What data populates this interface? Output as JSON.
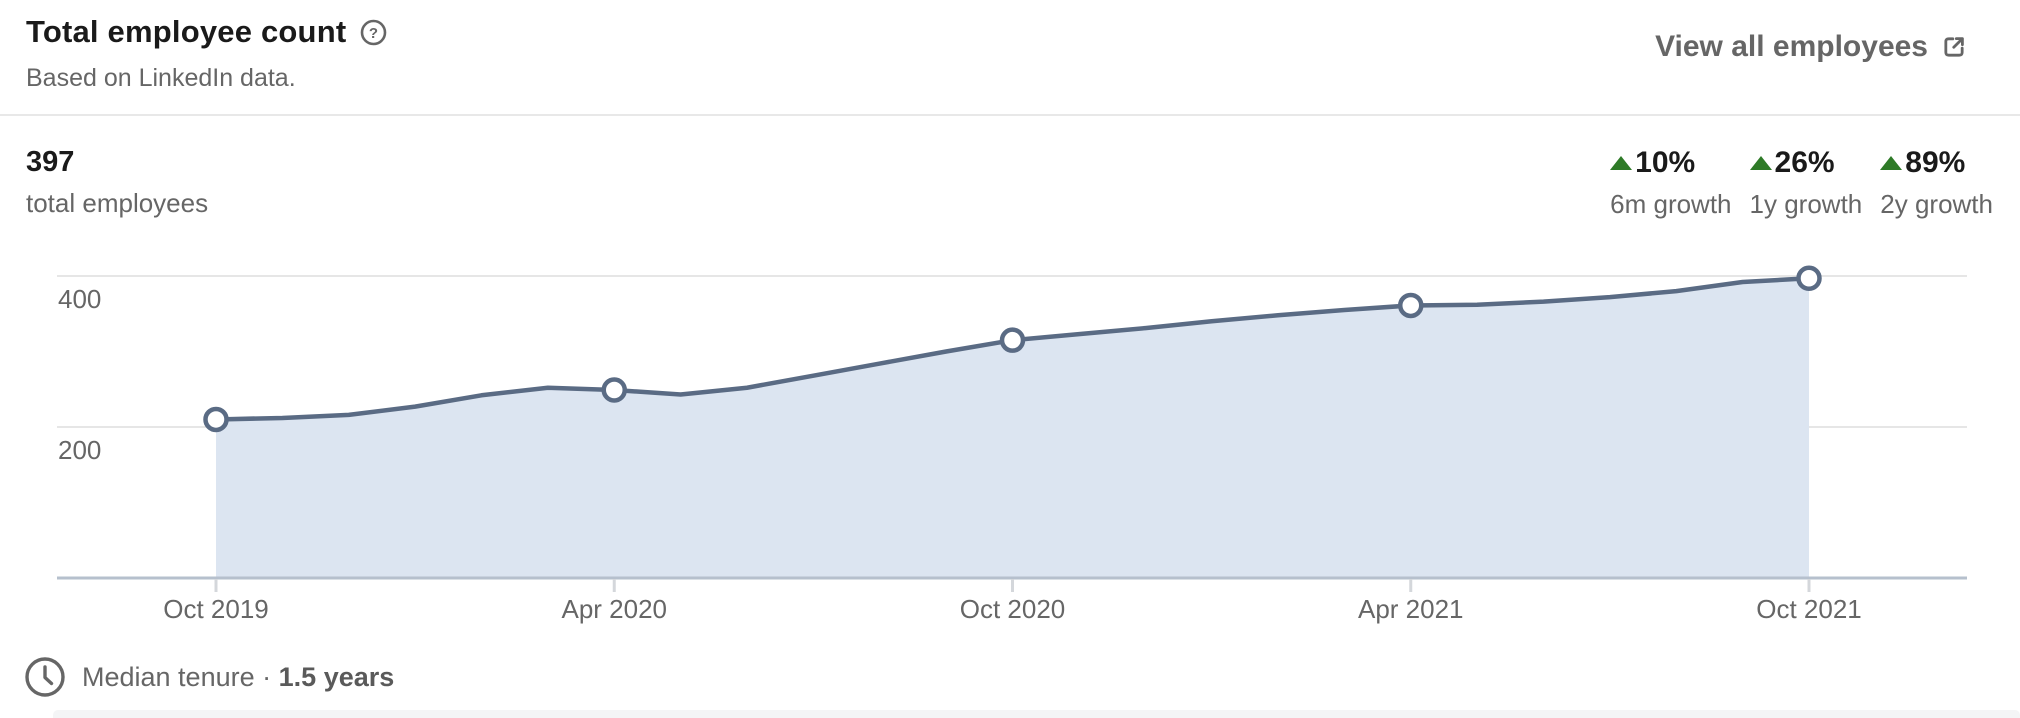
{
  "header": {
    "title": "Total employee count",
    "subtitle": "Based on LinkedIn data.",
    "view_all_label": "View all employees",
    "icons": {
      "help": "question-mark-circle-icon",
      "external_link": "external-link-icon"
    }
  },
  "summary": {
    "total_value": "397",
    "total_label": "total employees",
    "positive_color": "#2e7a27",
    "growth_stats": [
      {
        "value": "10%",
        "label": "6m growth",
        "direction": "up"
      },
      {
        "value": "26%",
        "label": "1y growth",
        "direction": "up"
      },
      {
        "value": "89%",
        "label": "2y growth",
        "direction": "up"
      }
    ]
  },
  "chart_data": {
    "type": "area",
    "title": "Total employee count",
    "x_tick_labels": [
      "Oct 2019",
      "Apr 2020",
      "Oct 2020",
      "Apr 2021",
      "Oct 2021"
    ],
    "y_ticks": [
      200,
      400
    ],
    "ylim": [
      0,
      450
    ],
    "grid": true,
    "legend": false,
    "marker_indices": [
      0,
      6,
      12,
      18,
      24
    ],
    "marker_values": [
      210,
      249,
      315,
      361,
      397
    ],
    "monthly_values_estimated": [
      210,
      212,
      216,
      227,
      242,
      252,
      249,
      243,
      252,
      268,
      284,
      300,
      315,
      323,
      331,
      340,
      348,
      355,
      361,
      362,
      366,
      372,
      380,
      392,
      397
    ],
    "colors": {
      "line": "#5a6b84",
      "fill": "#dce5f1",
      "grid": "#e6e6e6",
      "axis": "#b6c0cd",
      "tick": "#d4d7db",
      "marker_fill": "#ffffff"
    }
  },
  "footer": {
    "median_label": "Median tenure",
    "separator": "·",
    "median_value": "1.5 years",
    "clock_icon": "clock-icon"
  }
}
